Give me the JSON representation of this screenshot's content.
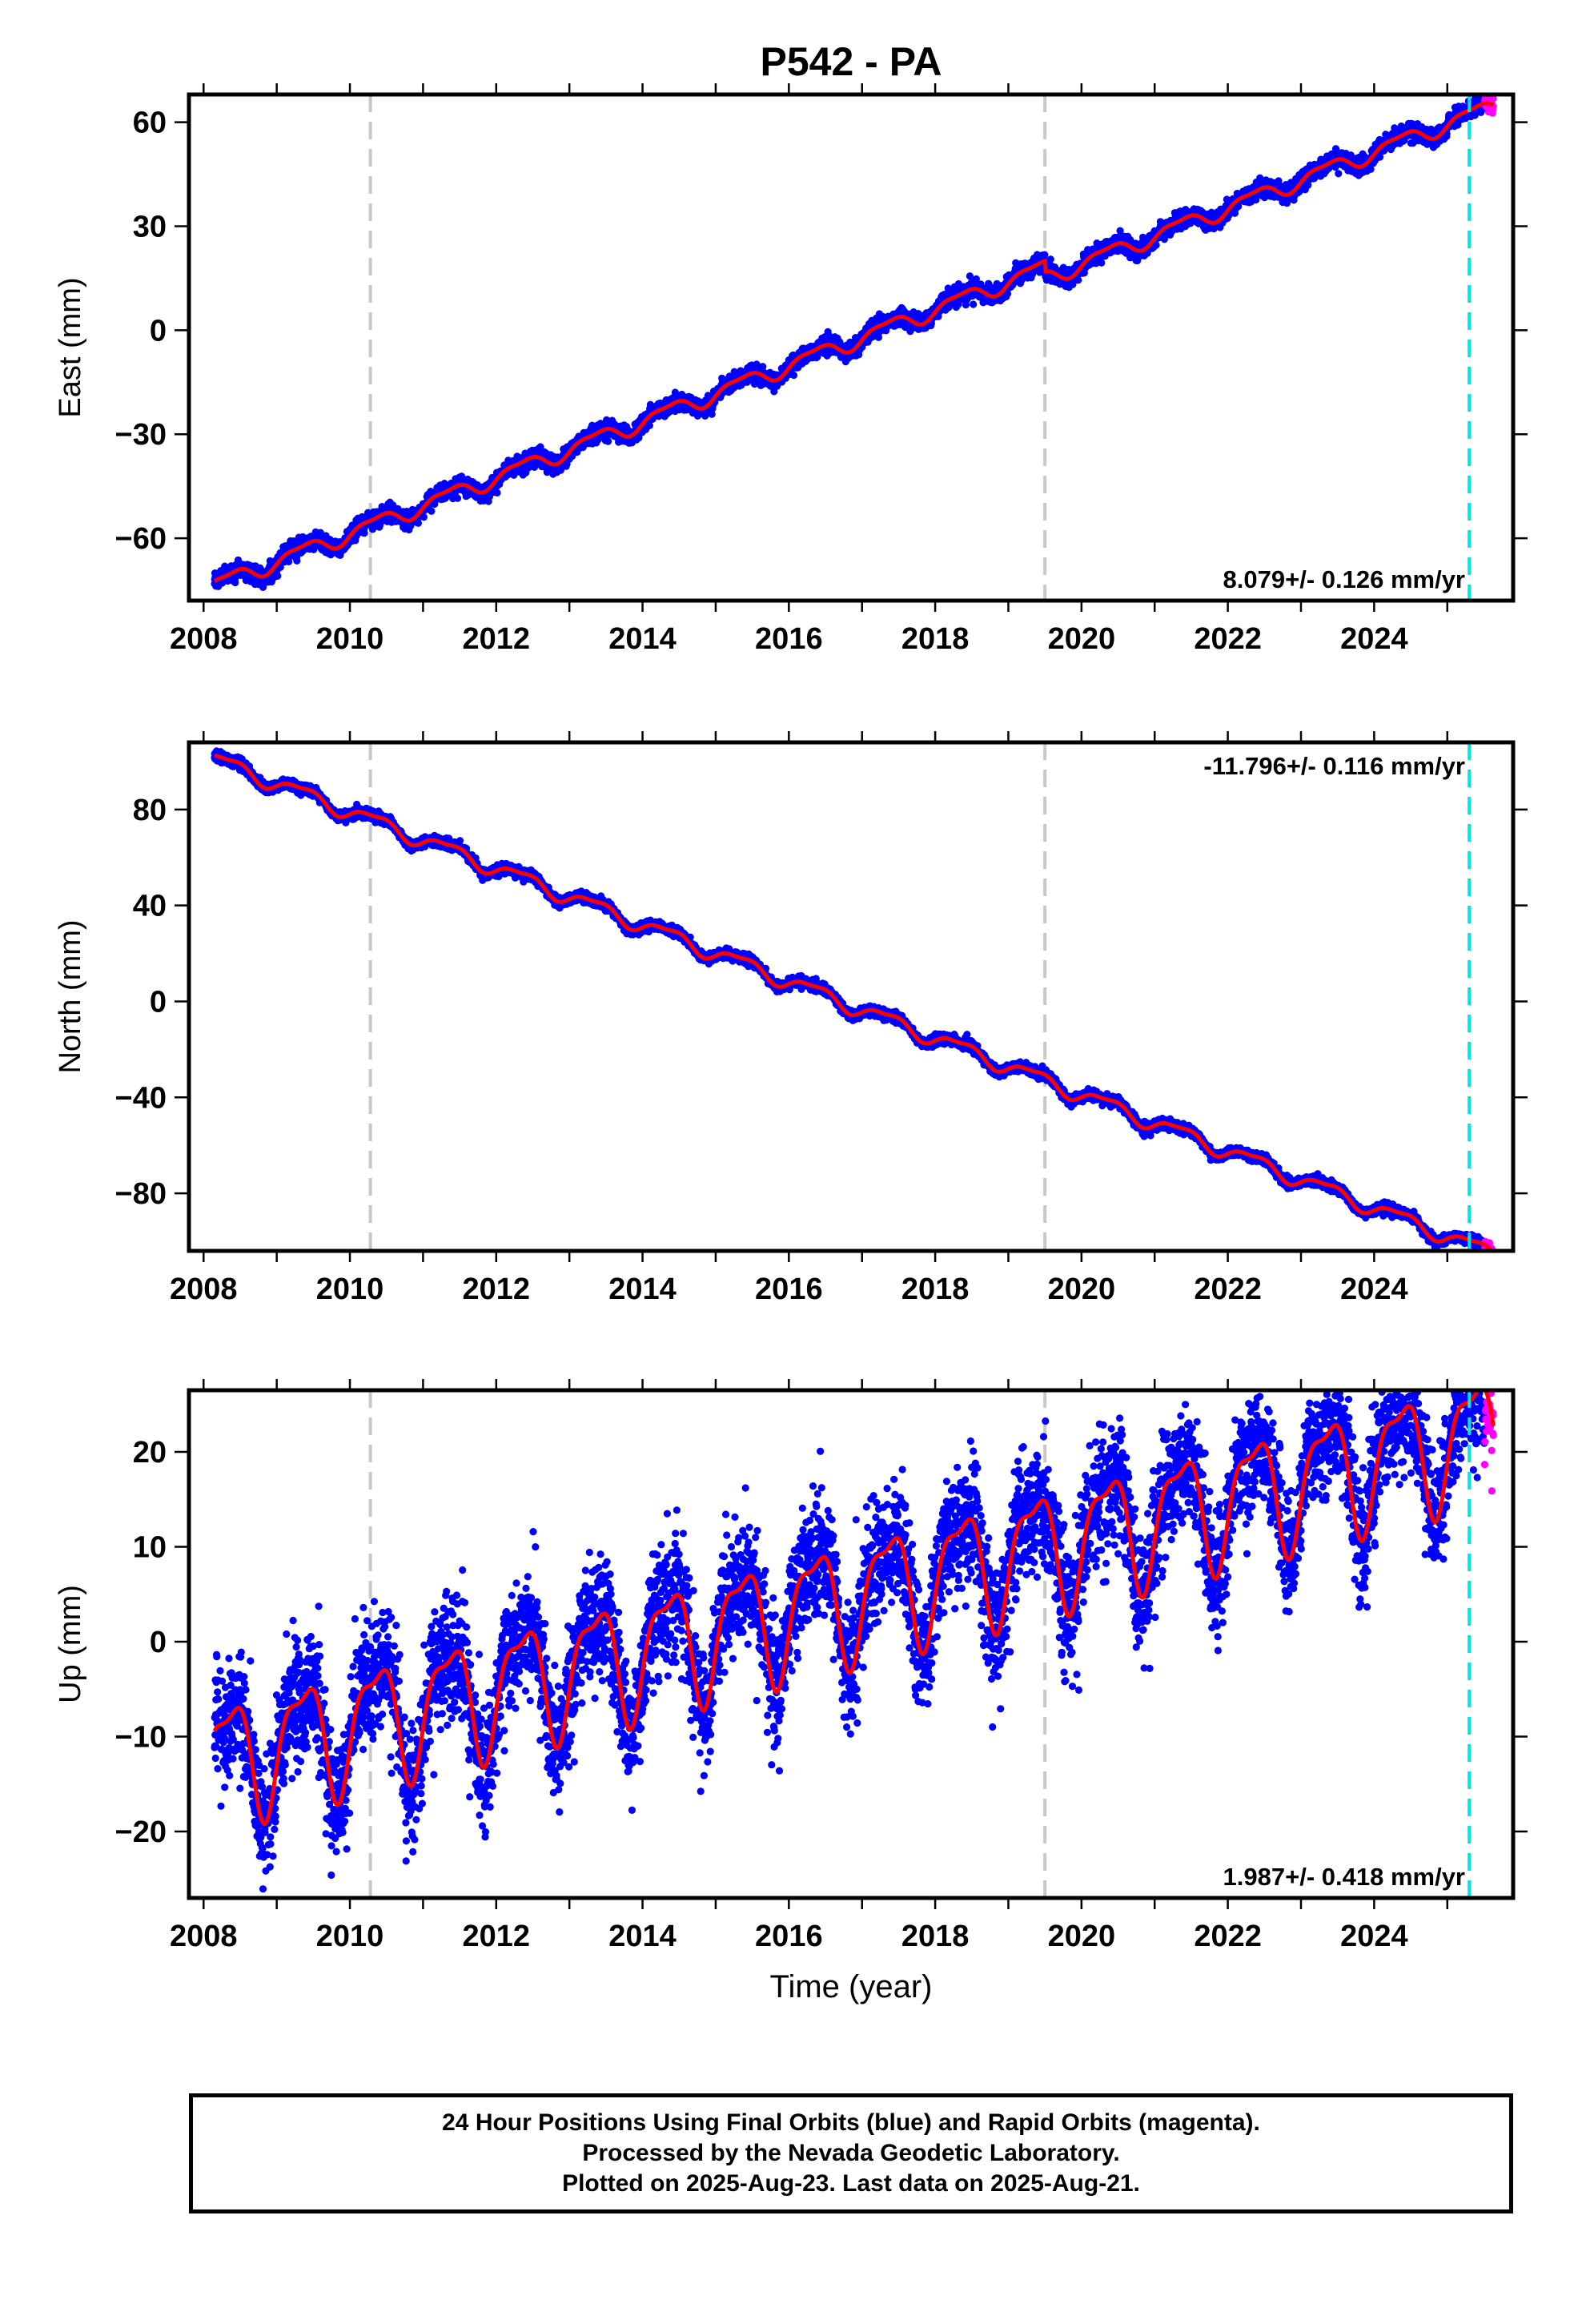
{
  "title": "P542 - PA",
  "colors": {
    "final_orbits": "#0000ff",
    "rapid_orbits": "#ff00ff",
    "model": "#ff0000",
    "event_line": "#c8c8c8",
    "last_line": "#00e5e5"
  },
  "caption": {
    "line1": "24 Hour Positions Using Final Orbits (blue) and Rapid Orbits (magenta).",
    "line2": "Processed by the Nevada Geodetic Laboratory.",
    "line3": "Plotted on 2025-Aug-23. Last data on 2025-Aug-21."
  },
  "chart_data": [
    {
      "type": "scatter",
      "panel": "east",
      "ylabel": "East (mm)",
      "xlabel": "",
      "xlim": [
        2007.8,
        2025.9
      ],
      "ylim": [
        -78,
        68
      ],
      "yticks": [
        -60,
        -30,
        0,
        30,
        60
      ],
      "xticks": [
        2008,
        2010,
        2012,
        2014,
        2016,
        2018,
        2020,
        2022,
        2024
      ],
      "rate_label": "8.079+/- 0.126 mm/yr",
      "rate_position": "bottom-right",
      "start": 2008.15,
      "end": 2025.63,
      "start_value": -73.5,
      "rate": 8.079,
      "annual_amplitude": 2.2,
      "noise": 1.2,
      "offsets": [
        {
          "time": 2019.5,
          "step": -3
        }
      ],
      "event_lines": [
        2010.28,
        2019.5
      ],
      "last_final_line": 2025.3
    },
    {
      "type": "scatter",
      "panel": "north",
      "ylabel": "North (mm)",
      "xlabel": "",
      "xlim": [
        2007.8,
        2025.9
      ],
      "ylim": [
        -104,
        108
      ],
      "yticks": [
        -80,
        -40,
        0,
        40,
        80
      ],
      "xticks": [
        2008,
        2010,
        2012,
        2014,
        2016,
        2018,
        2020,
        2022,
        2024
      ],
      "rate_label": "-11.796+/- 0.116 mm/yr",
      "rate_position": "top-right",
      "start": 2008.15,
      "end": 2025.63,
      "start_value": 101,
      "rate": -11.796,
      "annual_amplitude": 3.0,
      "noise": 1.0,
      "offsets": [],
      "event_lines": [
        2010.28,
        2019.5
      ],
      "last_final_line": 2025.3
    },
    {
      "type": "scatter",
      "panel": "up",
      "ylabel": "Up (mm)",
      "xlabel": "Time (year)",
      "xlim": [
        2007.8,
        2025.9
      ],
      "ylim": [
        -27,
        26.5
      ],
      "yticks": [
        -20,
        -10,
        0,
        10,
        20
      ],
      "xticks": [
        2008,
        2010,
        2012,
        2014,
        2016,
        2018,
        2020,
        2022,
        2024
      ],
      "rate_label": "1.987+/- 0.418 mm/yr",
      "rate_position": "bottom-right",
      "start": 2008.15,
      "end": 2025.63,
      "start_value": -12.5,
      "rate": 1.987,
      "annual_amplitude": 6.0,
      "noise": 3.2,
      "offsets": [],
      "event_lines": [
        2010.28,
        2019.5
      ],
      "last_final_line": 2025.3
    }
  ]
}
